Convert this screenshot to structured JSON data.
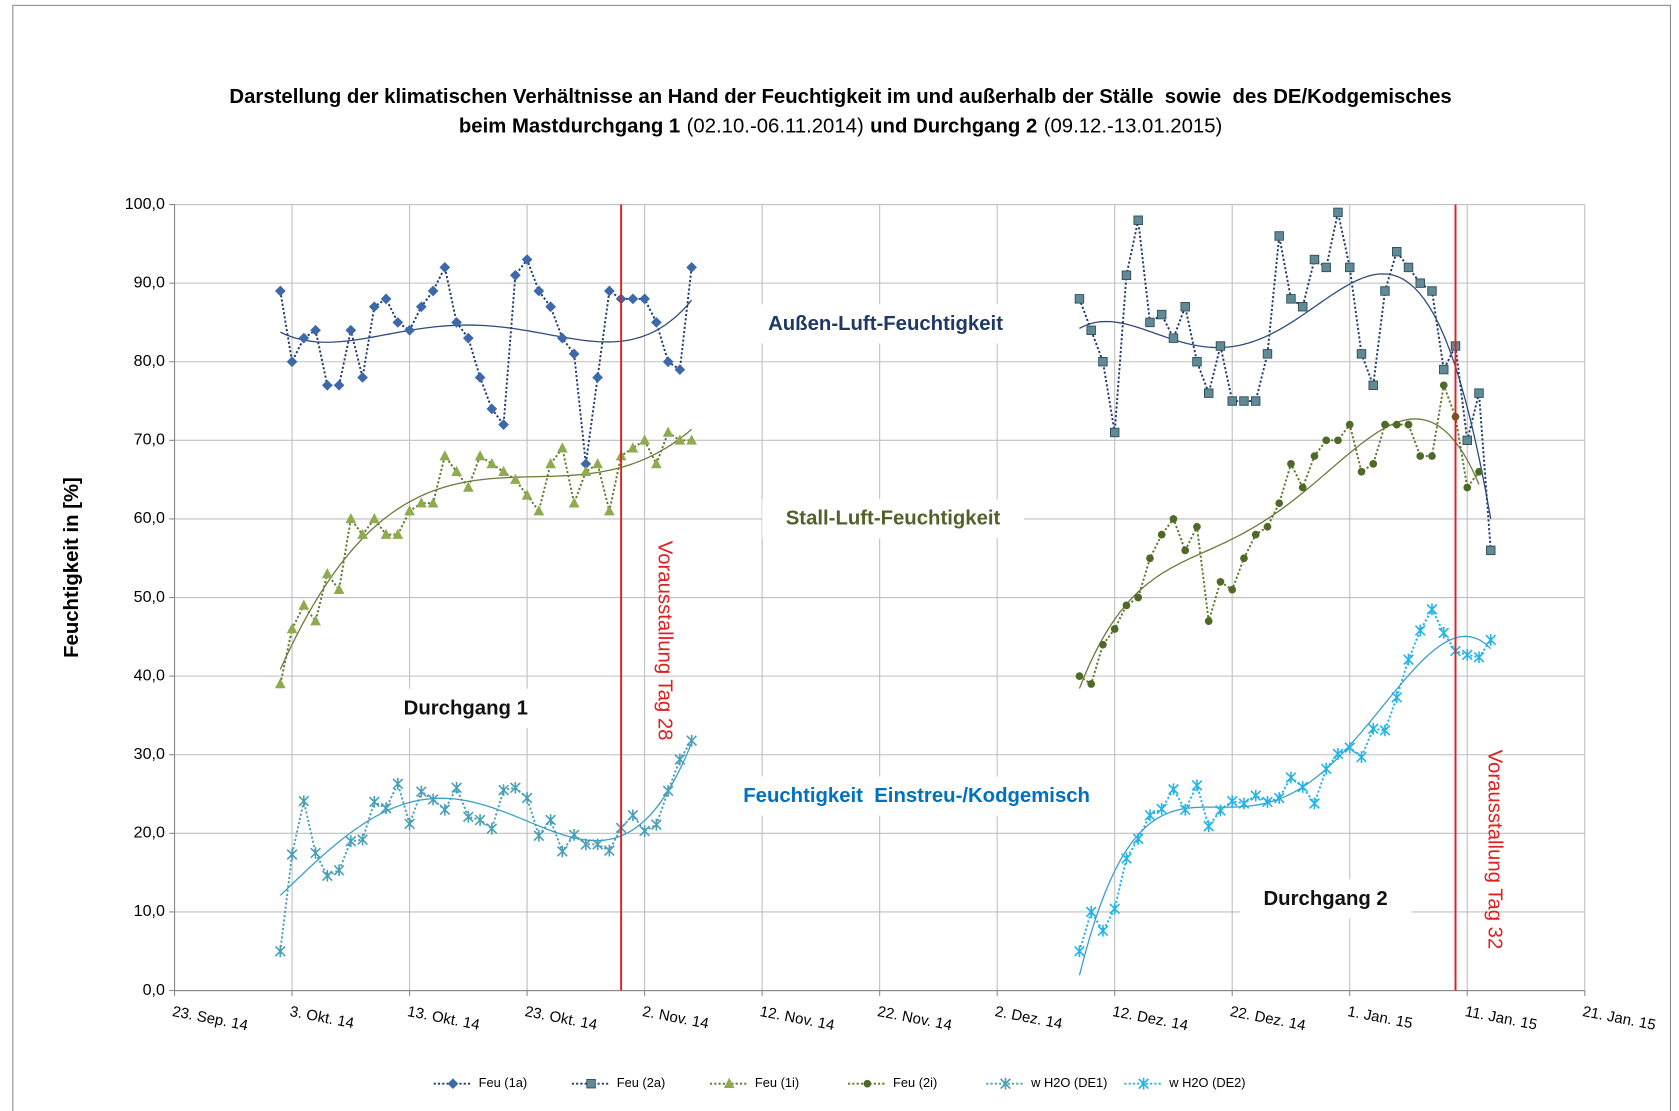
{
  "chart_data": {
    "type": "line",
    "title": [
      "Darstellung der klimatischen Verhältnisse an Hand der Feuchtigkeit im und außerhalb der Ställe  sowie  des DE/Kodgemisches",
      "beim Mastdurchgang 1",
      "(02.10.-06.11.2014)",
      "und Durchgang 2",
      "(09.12.-13.01.2015)"
    ],
    "y_label": "Feuchtigkeit in [%]",
    "xlim": [
      "2014-09-23",
      "2015-01-21"
    ],
    "xticks": [
      {
        "value": "2014-09-23",
        "label": "23. Sep. 14"
      },
      {
        "value": "2014-10-03",
        "label": "3. Okt. 14"
      },
      {
        "value": "2014-10-13",
        "label": "13. Okt. 14"
      },
      {
        "value": "2014-10-23",
        "label": "23. Okt. 14"
      },
      {
        "value": "2014-11-02",
        "label": "2. Nov. 14"
      },
      {
        "value": "2014-11-12",
        "label": "12. Nov. 14"
      },
      {
        "value": "2014-11-22",
        "label": "22. Nov. 14"
      },
      {
        "value": "2014-12-02",
        "label": "2. Dez. 14"
      },
      {
        "value": "2014-12-12",
        "label": "12. Dez. 14"
      },
      {
        "value": "2014-12-22",
        "label": "22. Dez. 14"
      },
      {
        "value": "2015-01-01",
        "label": "1. Jan. 15"
      },
      {
        "value": "2015-01-11",
        "label": "11. Jan. 15"
      },
      {
        "value": "2015-01-21",
        "label": "21. Jan. 15"
      }
    ],
    "ylim": [
      0,
      100
    ],
    "yticks": [
      {
        "value": 0,
        "label": "0,0"
      },
      {
        "value": 10,
        "label": "10,0"
      },
      {
        "value": 20,
        "label": "20,0"
      },
      {
        "value": 30,
        "label": "30,0"
      },
      {
        "value": 40,
        "label": "40,0"
      },
      {
        "value": 50,
        "label": "50,0"
      },
      {
        "value": 60,
        "label": "60,0"
      },
      {
        "value": 70,
        "label": "70,0"
      },
      {
        "value": 80,
        "label": "80,0"
      },
      {
        "value": 90,
        "label": "90,0"
      },
      {
        "value": 100,
        "label": "100,0"
      }
    ],
    "grid": true,
    "legend": "bottom",
    "trendline": true,
    "series": [
      {
        "name": "Feu (1a)",
        "color": "#3d69a8",
        "line_color": "#1f3a6e",
        "trend_color": "#2f4a7c",
        "marker": "diamond",
        "x": [
          "2014-10-02",
          "2014-10-03",
          "2014-10-04",
          "2014-10-05",
          "2014-10-06",
          "2014-10-07",
          "2014-10-08",
          "2014-10-09",
          "2014-10-10",
          "2014-10-11",
          "2014-10-12",
          "2014-10-13",
          "2014-10-14",
          "2014-10-15",
          "2014-10-16",
          "2014-10-17",
          "2014-10-18",
          "2014-10-19",
          "2014-10-20",
          "2014-10-21",
          "2014-10-22",
          "2014-10-23",
          "2014-10-24",
          "2014-10-25",
          "2014-10-26",
          "2014-10-27",
          "2014-10-28",
          "2014-10-29",
          "2014-10-30",
          "2014-10-31",
          "2014-11-01",
          "2014-11-02",
          "2014-11-03",
          "2014-11-04",
          "2014-11-05",
          "2014-11-06"
        ],
        "values": [
          89,
          80,
          83,
          84,
          77,
          77,
          84,
          78,
          87,
          88,
          85,
          84,
          87,
          89,
          92,
          85,
          83,
          78,
          74,
          72,
          91,
          93,
          89,
          87,
          83,
          81,
          67,
          78,
          89,
          88,
          88,
          88,
          85,
          80,
          79,
          92
        ]
      },
      {
        "name": "Feu (2a)",
        "color": "#5f8a96",
        "line_color": "#1f3a6e",
        "trend_color": "#2f4a7c",
        "marker": "square",
        "x": [
          "2014-12-09",
          "2014-12-10",
          "2014-12-11",
          "2014-12-12",
          "2014-12-13",
          "2014-12-14",
          "2014-12-15",
          "2014-12-16",
          "2014-12-17",
          "2014-12-18",
          "2014-12-19",
          "2014-12-20",
          "2014-12-21",
          "2014-12-22",
          "2014-12-23",
          "2014-12-24",
          "2014-12-25",
          "2014-12-26",
          "2014-12-27",
          "2014-12-28",
          "2014-12-29",
          "2014-12-30",
          "2014-12-31",
          "2015-01-01",
          "2015-01-02",
          "2015-01-03",
          "2015-01-04",
          "2015-01-05",
          "2015-01-06",
          "2015-01-07",
          "2015-01-08",
          "2015-01-09",
          "2015-01-10",
          "2015-01-11",
          "2015-01-12",
          "2015-01-13"
        ],
        "values": [
          88,
          84,
          80,
          71,
          91,
          98,
          85,
          86,
          83,
          87,
          80,
          76,
          82,
          75,
          75,
          75,
          81,
          96,
          88,
          87,
          93,
          92,
          99,
          92,
          81,
          77,
          89,
          94,
          92,
          90,
          89,
          79,
          82,
          70,
          76,
          56
        ]
      },
      {
        "name": "Feu (1i)",
        "color": "#8fab50",
        "line_color": "#5a7a28",
        "trend_color": "#6b7a3a",
        "marker": "triangle",
        "x": [
          "2014-10-02",
          "2014-10-03",
          "2014-10-04",
          "2014-10-05",
          "2014-10-06",
          "2014-10-07",
          "2014-10-08",
          "2014-10-09",
          "2014-10-10",
          "2014-10-11",
          "2014-10-12",
          "2014-10-13",
          "2014-10-14",
          "2014-10-15",
          "2014-10-16",
          "2014-10-17",
          "2014-10-18",
          "2014-10-19",
          "2014-10-20",
          "2014-10-21",
          "2014-10-22",
          "2014-10-23",
          "2014-10-24",
          "2014-10-25",
          "2014-10-26",
          "2014-10-27",
          "2014-10-28",
          "2014-10-29",
          "2014-10-30",
          "2014-10-31",
          "2014-11-01",
          "2014-11-02",
          "2014-11-03",
          "2014-11-04",
          "2014-11-05",
          "2014-11-06"
        ],
        "values": [
          39,
          46,
          49,
          47,
          53,
          51,
          60,
          58,
          60,
          58,
          58,
          61,
          62,
          62,
          68,
          66,
          64,
          68,
          67,
          66,
          65,
          63,
          61,
          67,
          69,
          62,
          66,
          67,
          61,
          68,
          69,
          70,
          67,
          71,
          70,
          70
        ]
      },
      {
        "name": "Feu (2i)",
        "color": "#4f6a28",
        "line_color": "#5a7a28",
        "trend_color": "#6b7a3a",
        "marker": "circle",
        "x": [
          "2014-12-09",
          "2014-12-10",
          "2014-12-11",
          "2014-12-12",
          "2014-12-13",
          "2014-12-14",
          "2014-12-15",
          "2014-12-16",
          "2014-12-17",
          "2014-12-18",
          "2014-12-19",
          "2014-12-20",
          "2014-12-21",
          "2014-12-22",
          "2014-12-23",
          "2014-12-24",
          "2014-12-25",
          "2014-12-26",
          "2014-12-27",
          "2014-12-28",
          "2014-12-29",
          "2014-12-30",
          "2014-12-31",
          "2015-01-01",
          "2015-01-02",
          "2015-01-03",
          "2015-01-04",
          "2015-01-05",
          "2015-01-06",
          "2015-01-07",
          "2015-01-08",
          "2015-01-09",
          "2015-01-10",
          "2015-01-11",
          "2015-01-12",
          "2015-01-13"
        ],
        "values": [
          40,
          39,
          44,
          46,
          49,
          50,
          55,
          58,
          60,
          56,
          59,
          47,
          52,
          51,
          55,
          58,
          59,
          62,
          67,
          64,
          68,
          70,
          70,
          72,
          66,
          67,
          72,
          72,
          72,
          68,
          68,
          77,
          73,
          64,
          66,
          null
        ]
      },
      {
        "name": "w H2O (DE1)",
        "color": "#4a9fb6",
        "line_color": "#4a9fb6",
        "trend_color": "#3a9fc8",
        "marker": "asterisk",
        "x": [
          "2014-10-02",
          "2014-10-03",
          "2014-10-04",
          "2014-10-05",
          "2014-10-06",
          "2014-10-07",
          "2014-10-08",
          "2014-10-09",
          "2014-10-10",
          "2014-10-11",
          "2014-10-12",
          "2014-10-13",
          "2014-10-14",
          "2014-10-15",
          "2014-10-16",
          "2014-10-17",
          "2014-10-18",
          "2014-10-19",
          "2014-10-20",
          "2014-10-21",
          "2014-10-22",
          "2014-10-23",
          "2014-10-24",
          "2014-10-25",
          "2014-10-26",
          "2014-10-27",
          "2014-10-28",
          "2014-10-29",
          "2014-10-30",
          "2014-10-31",
          "2014-11-01",
          "2014-11-02",
          "2014-11-03",
          "2014-11-04",
          "2014-11-05",
          "2014-11-06"
        ],
        "values": [
          5,
          17.3,
          24.1,
          17.5,
          14.6,
          15.3,
          19,
          19.2,
          24,
          23.2,
          26.3,
          21.2,
          25.3,
          24.3,
          23,
          25.8,
          22.1,
          21.7,
          20.6,
          25.5,
          25.8,
          24.5,
          19.7,
          21.7,
          17.7,
          19.8,
          18.6,
          18.6,
          17.8,
          20.7,
          22.3,
          20.3,
          21.1,
          25.4,
          29.4,
          31.8
        ]
      },
      {
        "name": "w H2O (DE2)",
        "color": "#22b4e6",
        "line_color": "#22b4e6",
        "trend_color": "#3a9fc8",
        "marker": "asterisk",
        "x": [
          "2014-12-09",
          "2014-12-10",
          "2014-12-11",
          "2014-12-12",
          "2014-12-13",
          "2014-12-14",
          "2014-12-15",
          "2014-12-16",
          "2014-12-17",
          "2014-12-18",
          "2014-12-19",
          "2014-12-20",
          "2014-12-21",
          "2014-12-22",
          "2014-12-23",
          "2014-12-24",
          "2014-12-25",
          "2014-12-26",
          "2014-12-27",
          "2014-12-28",
          "2014-12-29",
          "2014-12-30",
          "2014-12-31",
          "2015-01-01",
          "2015-01-02",
          "2015-01-03",
          "2015-01-04",
          "2015-01-05",
          "2015-01-06",
          "2015-01-07",
          "2015-01-08",
          "2015-01-09",
          "2015-01-10",
          "2015-01-11",
          "2015-01-12",
          "2015-01-13"
        ],
        "values": [
          5,
          10,
          7.6,
          10.4,
          16.8,
          19.3,
          22.3,
          23.1,
          25.6,
          23,
          26.1,
          20.9,
          22.9,
          24.1,
          23.8,
          24.8,
          24,
          24.5,
          27.1,
          25.9,
          23.8,
          28.2,
          30.1,
          30.9,
          29.7,
          33.3,
          33.1,
          37.3,
          42.1,
          45.8,
          48.5,
          45.5,
          43.2,
          42.7,
          42.4,
          44.6
        ]
      }
    ],
    "vlines": [
      {
        "x": "2014-10-31",
        "label": "Vorausstallung Tag 28",
        "color": "#e02020"
      },
      {
        "x": "2015-01-10",
        "label": "Vorausstallung Tag 32",
        "color": "#e02020"
      }
    ],
    "annotations": [
      "Außen-Luft-Feuchtigkeit",
      "Stall-Luft-Feuchtigkeit",
      "Feuchtigkeit  Einstreu-/Kodgemisch",
      "Durchgang 1",
      "Durchgang 2"
    ]
  }
}
